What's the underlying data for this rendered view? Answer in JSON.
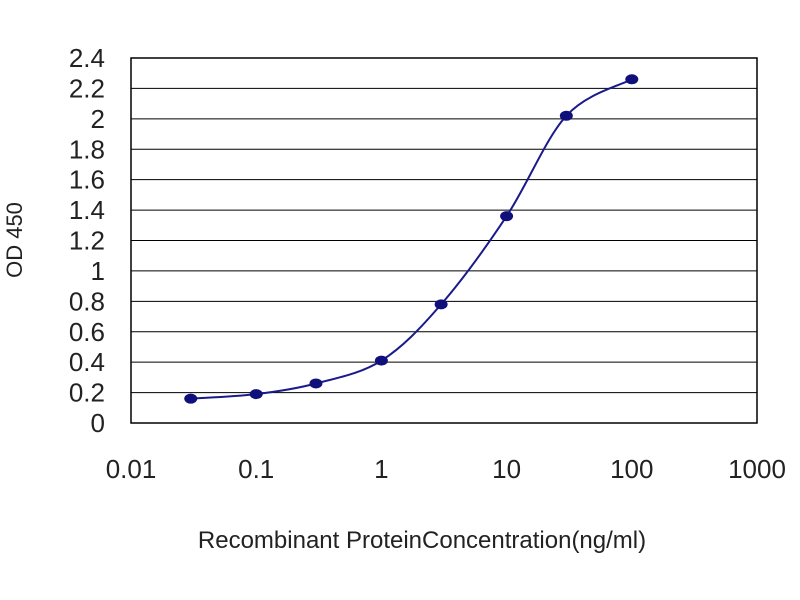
{
  "chart_data": {
    "type": "line",
    "title": "",
    "xlabel": "Recombinant ProteinConcentration(ng/ml)",
    "ylabel": "OD 450",
    "x_scale": "log",
    "xlim": [
      0.01,
      1000
    ],
    "ylim": [
      0,
      2.4
    ],
    "x_ticks": [
      0.01,
      0.1,
      1,
      10,
      100,
      1000
    ],
    "x_tick_labels": [
      "0.01",
      "0.1",
      "1",
      "10",
      "100",
      "1000"
    ],
    "y_ticks": [
      0,
      0.2,
      0.4,
      0.6,
      0.8,
      1,
      1.2,
      1.4,
      1.6,
      1.8,
      2,
      2.2,
      2.4
    ],
    "y_tick_labels": [
      "0",
      "0.2",
      "0.4",
      "0.6",
      "0.8",
      "1",
      "1.2",
      "1.4",
      "1.6",
      "1.8",
      "2",
      "2.2",
      "2.4"
    ],
    "grid": "horizontal",
    "legend": "none",
    "series": [
      {
        "x": [
          0.03,
          0.1,
          0.3,
          1,
          3,
          10,
          30,
          100
        ],
        "y": [
          0.16,
          0.19,
          0.26,
          0.41,
          0.78,
          1.36,
          2.02,
          2.26
        ],
        "color": "#1a1a8c"
      }
    ],
    "colors": {
      "plot_background": "#ffffff",
      "frame": "#000000",
      "gridline": "#000000",
      "line": "#1a1a8c",
      "marker": "#10107a"
    }
  }
}
